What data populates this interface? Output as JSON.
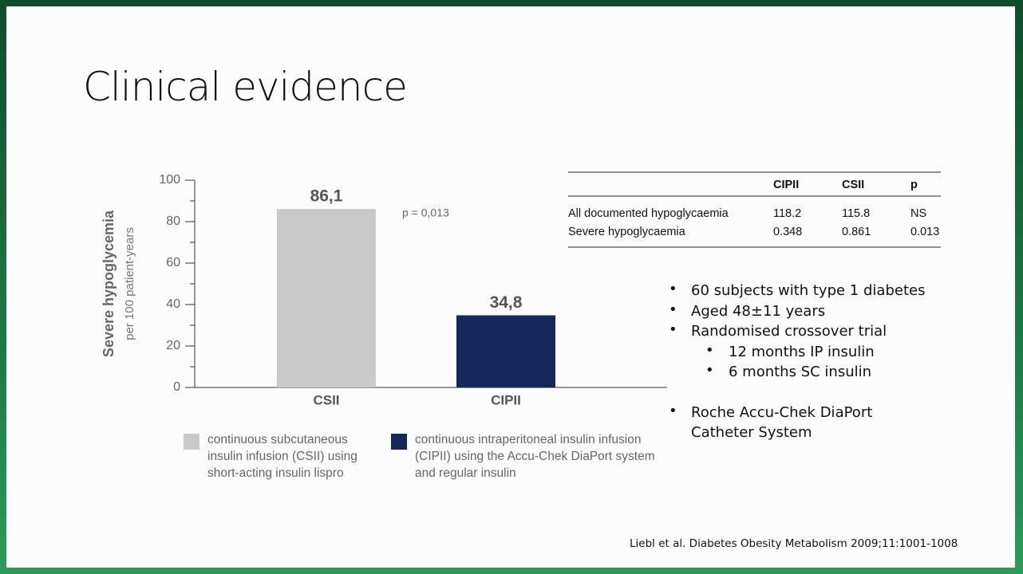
{
  "slide_title": "Clinical evidence",
  "chart_data": {
    "type": "bar",
    "ylabel": "Severe hypoglycemia",
    "ylabel_sub": "per 100 patient-years",
    "categories": [
      "CSII",
      "CIPII"
    ],
    "values": [
      86.1,
      34.8
    ],
    "value_labels": [
      "86,1",
      "34,8"
    ],
    "colors": [
      "#c8c9c8",
      "#14285e"
    ],
    "ylim": [
      0,
      100
    ],
    "yticks": [
      0,
      20,
      40,
      60,
      80,
      100
    ],
    "annotation": "p = 0,013",
    "legend": [
      "continuous subcutaneous insulin infusion (CSII) using short-acting insulin lispro",
      "continuous intraperitoneal insulin infusion (CIPII) using the Accu-Chek DiaPort system and regular insulin"
    ]
  },
  "table": {
    "header": [
      "CIPII",
      "CSII",
      "p"
    ],
    "rows": [
      {
        "label": "All documented hypoglycaemia",
        "cells": [
          "118.2",
          "115.8",
          "NS"
        ]
      },
      {
        "label": "Severe hypoglycaemia",
        "cells": [
          "0.348",
          "0.861",
          "0.013"
        ]
      }
    ]
  },
  "bullets": [
    {
      "text": "60 subjects with type 1 diabetes",
      "level": 1
    },
    {
      "text": "Aged 48±11 years",
      "level": 1
    },
    {
      "text": "Randomised crossover trial",
      "level": 1
    },
    {
      "text": "12 months IP insulin",
      "level": 2
    },
    {
      "text": "6 months SC insulin",
      "level": 2
    },
    {
      "text": "Roche Accu-Chek DiaPort Catheter System",
      "level": 1
    }
  ],
  "citation": "Liebl et al. Diabetes Obesity Metabolism 2009;11:1001-1008"
}
